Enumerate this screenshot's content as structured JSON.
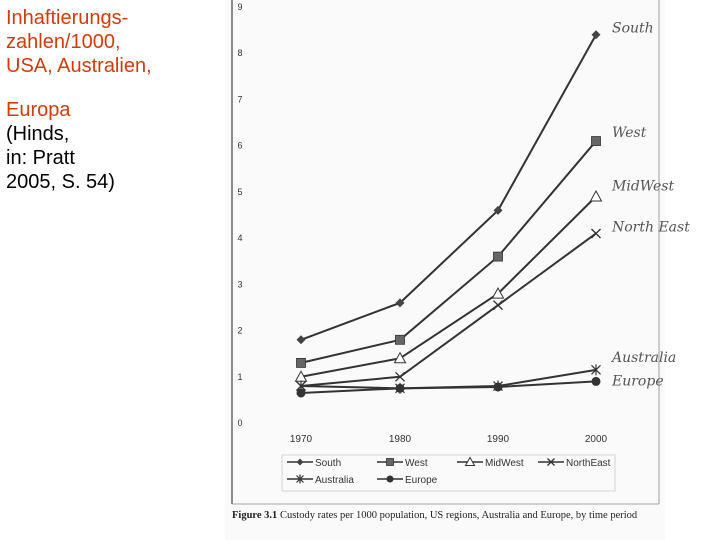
{
  "side_text": {
    "line1": "Inhaftierungs-",
    "line2": "zahlen/1000,",
    "line3": "USA, Australien,",
    "line4": "Europa",
    "line5": "(Hinds,",
    "line6": "in: Pratt",
    "line7": "2005, S. 54)"
  },
  "caption": {
    "label": "Figure 3.1",
    "text": "Custody rates per 1000 population, US regions, Australia and Europe, by time period"
  },
  "chart_data": {
    "type": "line",
    "title": "Custody rates per 1000 population, US regions, Australia and Europe, by time period",
    "xlabel": "",
    "ylabel": "",
    "categories": [
      "1970",
      "1980",
      "1990",
      "2000"
    ],
    "ylim": [
      0,
      9
    ],
    "yticks": [
      "0",
      "1",
      "2",
      "3",
      "4",
      "5",
      "6",
      "7",
      "8",
      "9"
    ],
    "series": [
      {
        "name": "South",
        "marker": "diamond",
        "values": [
          1.8,
          2.6,
          4.6,
          8.4
        ],
        "annotation": "South"
      },
      {
        "name": "West",
        "marker": "square",
        "values": [
          1.3,
          1.8,
          3.6,
          6.1
        ],
        "annotation": "West"
      },
      {
        "name": "MidWest",
        "marker": "triangle",
        "values": [
          1.0,
          1.4,
          2.8,
          4.9
        ],
        "annotation": "MidWest"
      },
      {
        "name": "NorthEast",
        "marker": "x",
        "values": [
          0.8,
          1.0,
          2.55,
          4.1
        ],
        "annotation": "North East"
      },
      {
        "name": "Australia",
        "marker": "star",
        "values": [
          0.8,
          0.75,
          0.8,
          1.15
        ],
        "annotation": "Australia"
      },
      {
        "name": "Europe",
        "marker": "circle",
        "values": [
          0.65,
          0.75,
          0.78,
          0.9
        ],
        "annotation": "Europe"
      }
    ]
  },
  "colors": {
    "line": "#333333",
    "marker_fill": "#444444",
    "accent": "#d03c0c"
  }
}
